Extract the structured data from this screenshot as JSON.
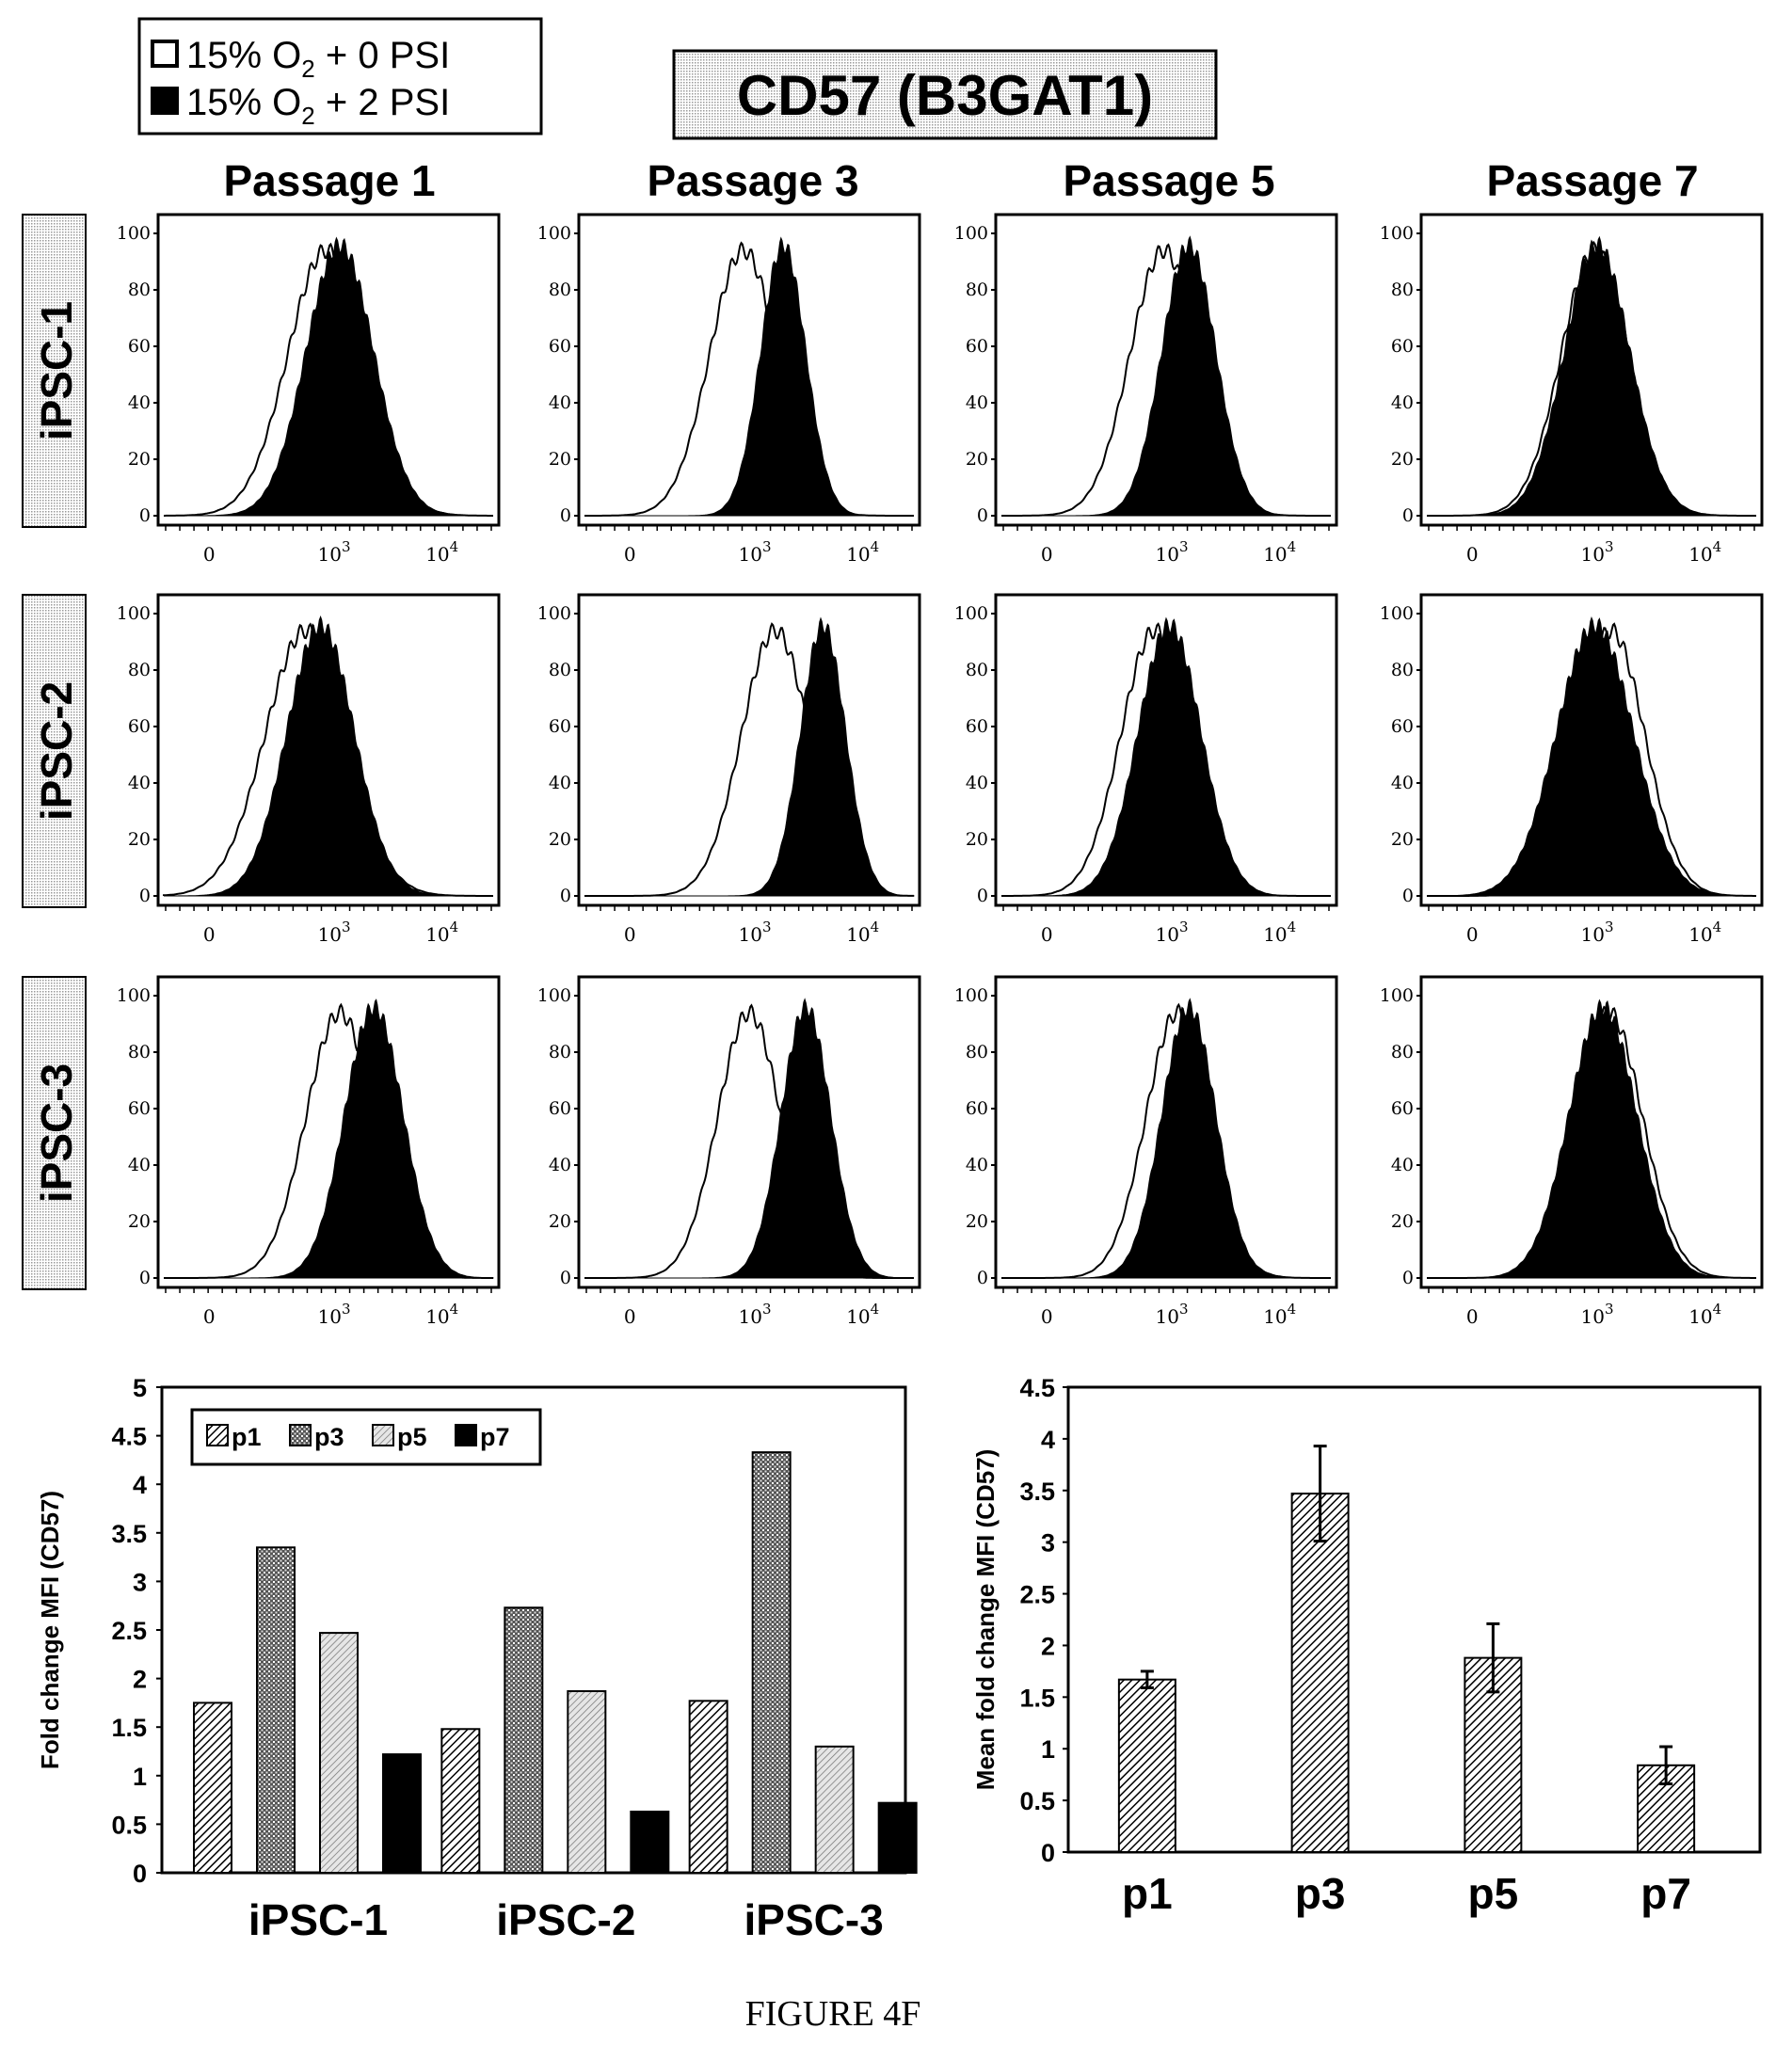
{
  "figure_caption": "FIGURE 4F",
  "legend_top": {
    "items": [
      {
        "label_prefix": "15% O",
        "label_sub": "2",
        "label_suffix": " + 0 PSI",
        "fill": "#ffffff"
      },
      {
        "label_prefix": "15% O",
        "label_sub": "2",
        "label_suffix": " + 2 PSI",
        "fill": "#000000"
      }
    ]
  },
  "marker_title": "CD57 (B3GAT1)",
  "columns": [
    "Passage 1",
    "Passage 3",
    "Passage 5",
    "Passage 7"
  ],
  "rows": [
    "iPSC-1",
    "iPSC-2",
    "iPSC-3"
  ],
  "histogram_axis": {
    "y_ticks": [
      "100",
      "80",
      "60",
      "40",
      "20",
      "0"
    ],
    "x_ticks": [
      {
        "base": "0",
        "exp": ""
      },
      {
        "base": "10",
        "exp": "3"
      },
      {
        "base": "10",
        "exp": "4"
      }
    ]
  },
  "chart_data": [
    {
      "type": "area",
      "description_axes": "flow cytometry histograms, x = fluorescence (0, 10^3, 10^4 log scale), y = % of max (0-100)",
      "series_names": [
        "15% O2 + 0 PSI",
        "15% O2 + 2 PSI"
      ],
      "panels": [
        {
          "row": "iPSC-1",
          "col": "Passage 1",
          "open_peak": 2.93,
          "open_width": 0.34,
          "filled_peak": 3.05,
          "filled_width": 0.3
        },
        {
          "row": "iPSC-1",
          "col": "Passage 3",
          "open_peak": 2.9,
          "open_width": 0.3,
          "filled_peak": 3.25,
          "filled_width": 0.2
        },
        {
          "row": "iPSC-1",
          "col": "Passage 5",
          "open_peak": 2.93,
          "open_width": 0.3,
          "filled_peak": 3.15,
          "filled_width": 0.24
        },
        {
          "row": "iPSC-1",
          "col": "Passage 7",
          "open_peak": 2.98,
          "open_width": 0.3,
          "filled_peak": 3.0,
          "filled_width": 0.29
        },
        {
          "row": "iPSC-2",
          "col": "Passage 1",
          "open_peak": 2.75,
          "open_width": 0.36,
          "filled_peak": 2.88,
          "filled_width": 0.3
        },
        {
          "row": "iPSC-2",
          "col": "Passage 3",
          "open_peak": 3.18,
          "open_width": 0.3,
          "filled_peak": 3.6,
          "filled_width": 0.2
        },
        {
          "row": "iPSC-2",
          "col": "Passage 5",
          "open_peak": 2.85,
          "open_width": 0.3,
          "filled_peak": 2.98,
          "filled_width": 0.28
        },
        {
          "row": "iPSC-2",
          "col": "Passage 7",
          "open_peak": 3.12,
          "open_width": 0.3,
          "filled_peak": 2.98,
          "filled_width": 0.34
        },
        {
          "row": "iPSC-3",
          "col": "Passage 1",
          "open_peak": 3.05,
          "open_width": 0.3,
          "filled_peak": 3.35,
          "filled_width": 0.26
        },
        {
          "row": "iPSC-3",
          "col": "Passage 3",
          "open_peak": 2.95,
          "open_width": 0.28,
          "filled_peak": 3.45,
          "filled_width": 0.22
        },
        {
          "row": "iPSC-3",
          "col": "Passage 5",
          "open_peak": 3.05,
          "open_width": 0.28,
          "filled_peak": 3.15,
          "filled_width": 0.24
        },
        {
          "row": "iPSC-3",
          "col": "Passage 7",
          "open_peak": 3.1,
          "open_width": 0.3,
          "filled_peak": 3.05,
          "filled_width": 0.3
        }
      ]
    },
    {
      "type": "bar",
      "ylabel": "Fold change MFI (CD57)",
      "ylim": [
        0,
        5
      ],
      "y_ticks": [
        "0",
        "0.5",
        "1",
        "1.5",
        "2",
        "2.5",
        "3",
        "3.5",
        "4",
        "4.5",
        "5"
      ],
      "categories": [
        "iPSC-1",
        "iPSC-2",
        "iPSC-3"
      ],
      "legend": "top-left",
      "series": [
        {
          "name": "p1",
          "values": [
            1.75,
            1.48,
            1.77
          ],
          "pattern": "diag"
        },
        {
          "name": "p3",
          "values": [
            3.35,
            2.73,
            4.33
          ],
          "pattern": "cross"
        },
        {
          "name": "p5",
          "values": [
            2.47,
            1.87,
            1.3
          ],
          "pattern": "dots"
        },
        {
          "name": "p7",
          "values": [
            1.22,
            0.63,
            0.72
          ],
          "pattern": "solid"
        }
      ]
    },
    {
      "type": "bar",
      "ylabel": "Mean fold change MFI (CD57)",
      "ylim": [
        0,
        4.5
      ],
      "y_ticks": [
        "0",
        "0.5",
        "1",
        "1.5",
        "2",
        "2.5",
        "3",
        "3.5",
        "4",
        "4.5"
      ],
      "categories": [
        "p1",
        "p3",
        "p5",
        "p7"
      ],
      "values": [
        1.67,
        3.47,
        1.88,
        0.84
      ],
      "errors": [
        0.08,
        0.46,
        0.33,
        0.18
      ]
    }
  ]
}
